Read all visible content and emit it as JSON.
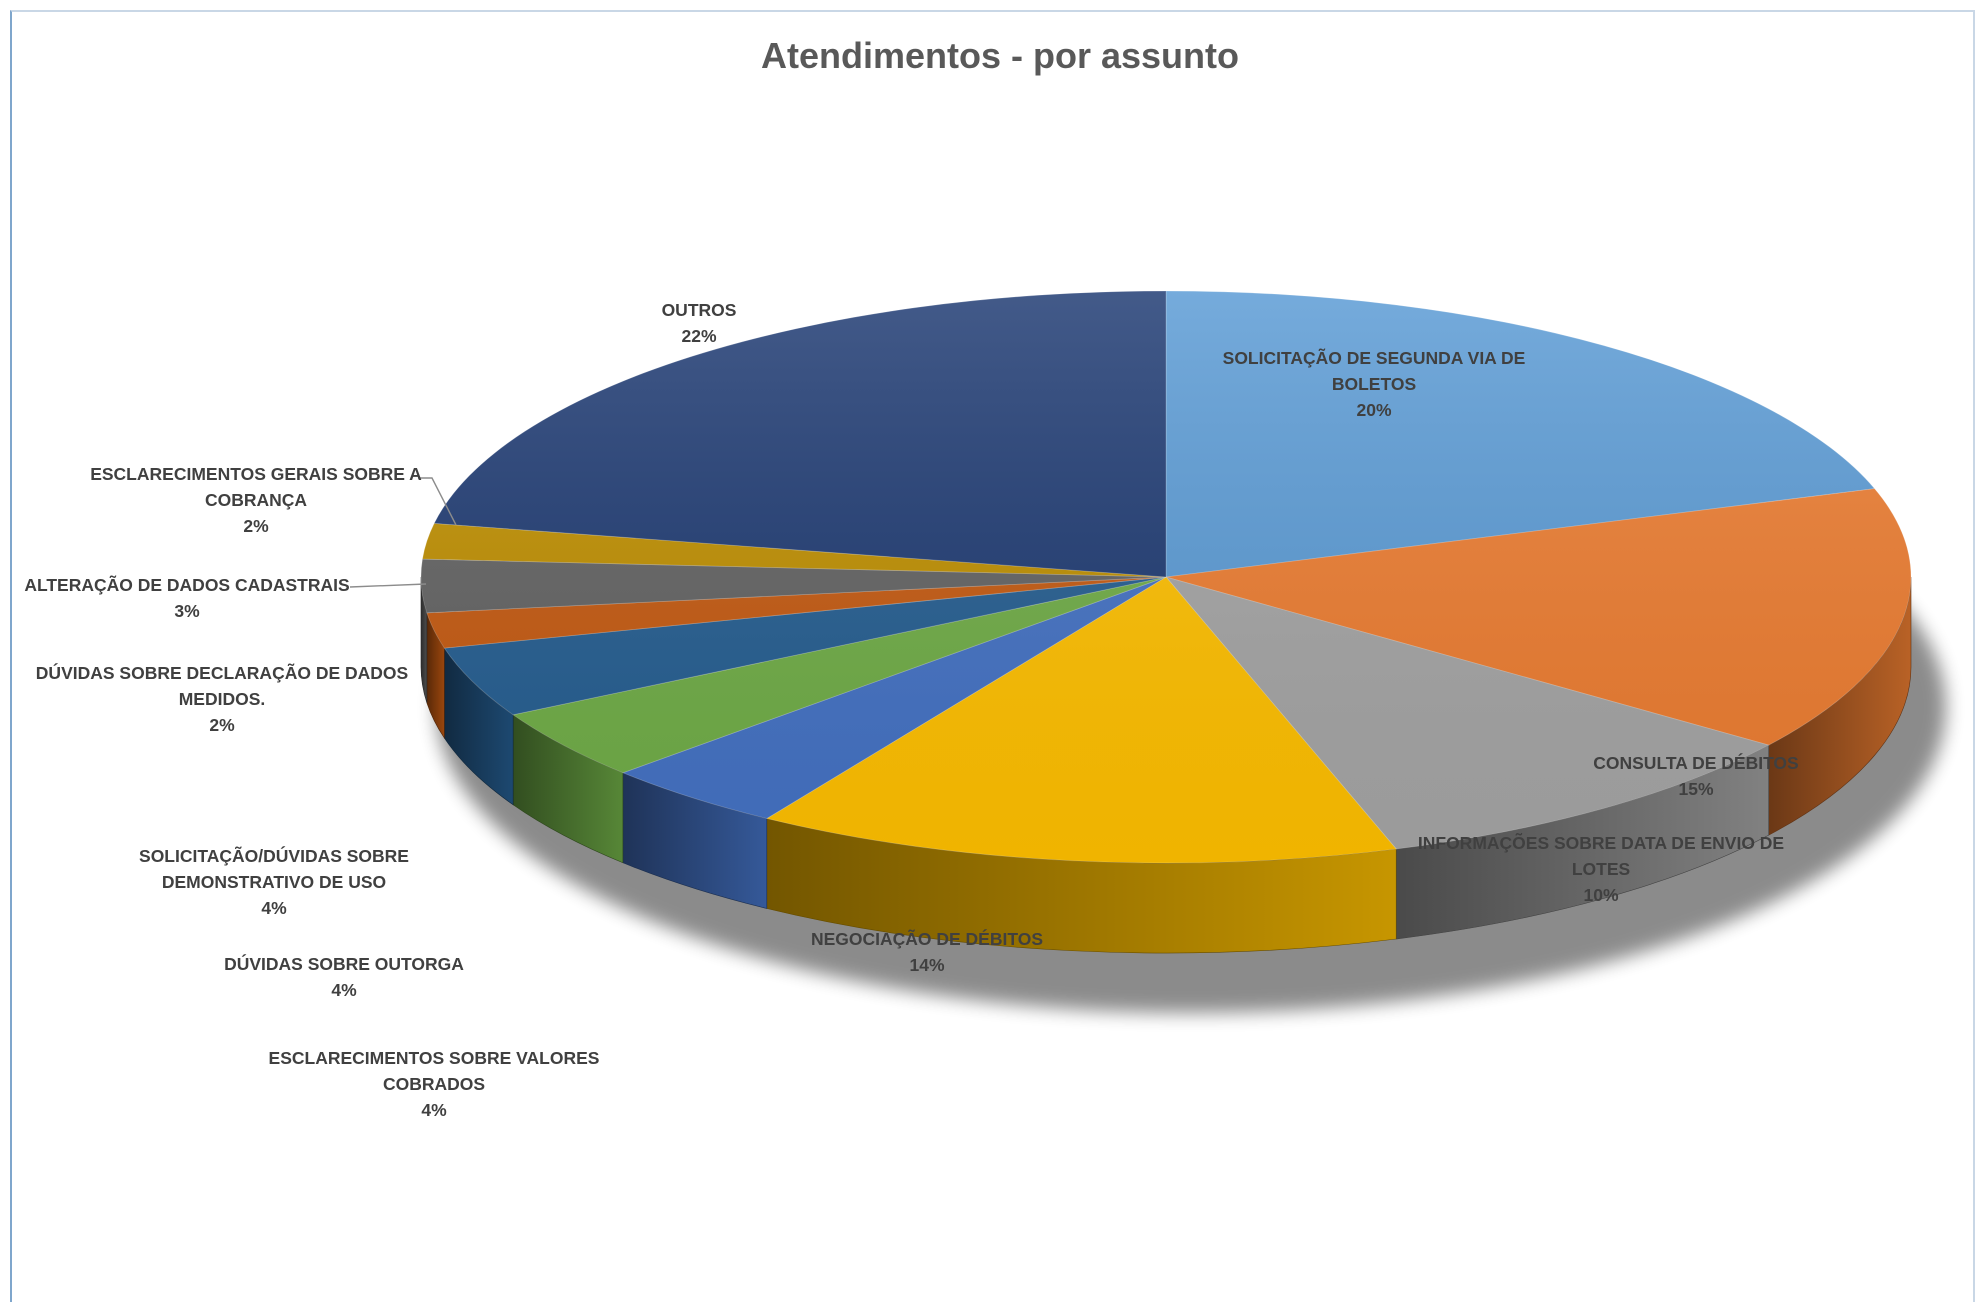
{
  "chart_data": {
    "type": "pie",
    "title": "Atendimentos - por assunto",
    "legend": "none",
    "slices": [
      {
        "label_lines": [
          "SOLICITAÇÃO DE SEGUNDA VIA DE",
          "BOLETOS"
        ],
        "percent_label": "20%",
        "value": 20,
        "color": "#5b9bd5"
      },
      {
        "label_lines": [
          "CONSULTA DE DÉBITOS"
        ],
        "percent_label": "15%",
        "value": 15,
        "color": "#ed7d31"
      },
      {
        "label_lines": [
          "INFORMAÇÕES SOBRE DATA DE ENVIO DE",
          "LOTES"
        ],
        "percent_label": "10%",
        "value": 10,
        "color": "#a5a5a5"
      },
      {
        "label_lines": [
          "NEGOCIAÇÃO DE DÉBITOS"
        ],
        "percent_label": "14%",
        "value": 14,
        "color": "#ffc000"
      },
      {
        "label_lines": [
          "ESCLARECIMENTOS SOBRE VALORES",
          "COBRADOS"
        ],
        "percent_label": "4%",
        "value": 4,
        "color": "#4472c4"
      },
      {
        "label_lines": [
          "DÚVIDAS SOBRE OUTORGA"
        ],
        "percent_label": "4%",
        "value": 4,
        "color": "#70ad47"
      },
      {
        "label_lines": [
          "SOLICITAÇÃO/DÚVIDAS SOBRE",
          "DEMONSTRATIVO DE USO"
        ],
        "percent_label": "4%",
        "value": 4,
        "color": "#255e91"
      },
      {
        "label_lines": [
          "DÚVIDAS SOBRE DECLARAÇÃO DE DADOS",
          "MEDIDOS."
        ],
        "percent_label": "2%",
        "value": 2,
        "color": "#c55a11"
      },
      {
        "label_lines": [
          "ALTERAÇÃO DE DADOS CADASTRAIS"
        ],
        "percent_label": "3%",
        "value": 3,
        "color": "#636363"
      },
      {
        "label_lines": [
          "ESCLARECIMENTOS GERAIS SOBRE A",
          "COBRANÇA"
        ],
        "percent_label": "2%",
        "value": 2,
        "color": "#bf8f00"
      },
      {
        "label_lines": [
          "OUTROS"
        ],
        "percent_label": "22%",
        "value": 22,
        "color": "#1f3b73"
      }
    ]
  }
}
